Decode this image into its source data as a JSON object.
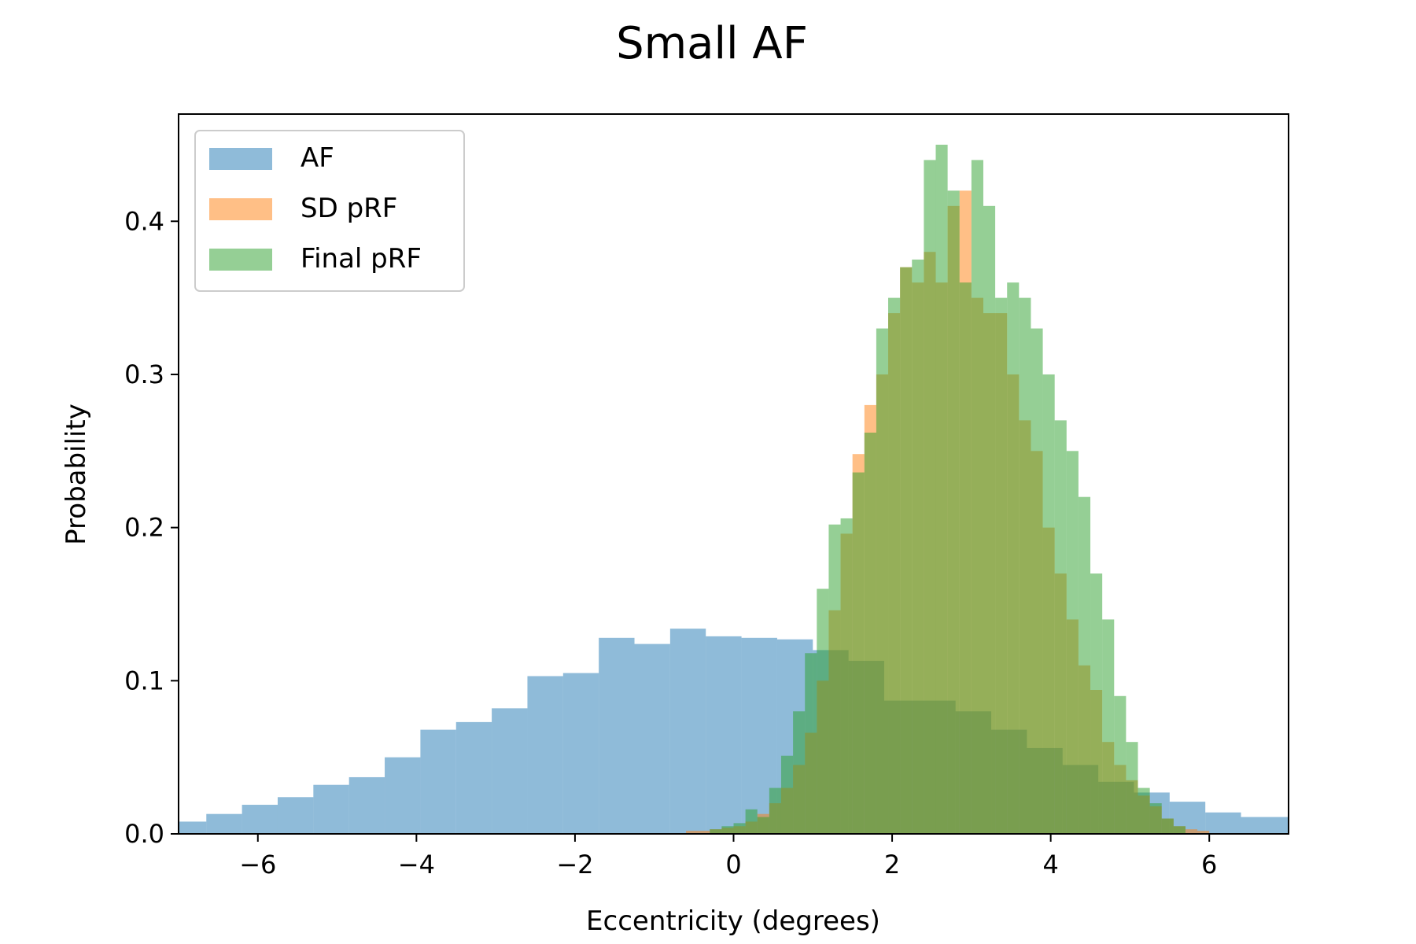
{
  "chart_data": {
    "type": "histogram",
    "title": "Small AF",
    "xlabel": "Eccentricity (degrees)",
    "ylabel": "Probability",
    "xlim": [
      -7,
      7
    ],
    "ylim": [
      0,
      0.47
    ],
    "x_ticks": [
      -6,
      -4,
      -2,
      0,
      2,
      4,
      6
    ],
    "x_tick_labels": [
      "−6",
      "−4",
      "−2",
      "0",
      "2",
      "4",
      "6"
    ],
    "y_ticks": [
      0.0,
      0.1,
      0.2,
      0.3,
      0.4
    ],
    "y_tick_labels": [
      "0.0",
      "0.1",
      "0.2",
      "0.3",
      "0.4"
    ],
    "grid": false,
    "legend": {
      "location": "upper-left",
      "entries": [
        "AF",
        "SD pRF",
        "Final pRF"
      ]
    },
    "series": [
      {
        "name": "AF",
        "color": "#1f77b4",
        "alpha": 0.5,
        "bin_edges": [
          -7.0,
          -6.65,
          -6.2,
          -5.75,
          -5.3,
          -4.85,
          -4.4,
          -3.95,
          -3.5,
          -3.05,
          -2.6,
          -2.15,
          -1.7,
          -1.25,
          -0.8,
          -0.35,
          0.1,
          0.55,
          1.0,
          1.45,
          1.9,
          2.35,
          2.8,
          3.25,
          3.7,
          4.15,
          4.6,
          5.05,
          5.5,
          5.95,
          6.4,
          7.0
        ],
        "values": [
          0.008,
          0.013,
          0.019,
          0.024,
          0.032,
          0.037,
          0.05,
          0.068,
          0.073,
          0.082,
          0.103,
          0.105,
          0.128,
          0.124,
          0.134,
          0.129,
          0.128,
          0.127,
          0.12,
          0.113,
          0.087,
          0.087,
          0.08,
          0.068,
          0.056,
          0.045,
          0.034,
          0.027,
          0.021,
          0.014,
          0.011
        ]
      },
      {
        "name": "SD pRF",
        "color": "#ff7f0e",
        "alpha": 0.5,
        "bin_edges": [
          -0.6,
          -0.45,
          -0.3,
          -0.15,
          0.0,
          0.15,
          0.3,
          0.45,
          0.6,
          0.75,
          0.9,
          1.05,
          1.2,
          1.35,
          1.5,
          1.65,
          1.8,
          1.95,
          2.1,
          2.25,
          2.4,
          2.55,
          2.7,
          2.85,
          3.0,
          3.15,
          3.3,
          3.45,
          3.6,
          3.75,
          3.9,
          4.05,
          4.2,
          4.35,
          4.5,
          4.65,
          4.8,
          4.95,
          5.1,
          5.25,
          5.4,
          5.55,
          5.7,
          5.85,
          6.0
        ],
        "values": [
          0.002,
          0.002,
          0.003,
          0.004,
          0.005,
          0.008,
          0.013,
          0.02,
          0.03,
          0.045,
          0.066,
          0.1,
          0.146,
          0.196,
          0.248,
          0.28,
          0.3,
          0.34,
          0.37,
          0.36,
          0.38,
          0.36,
          0.41,
          0.42,
          0.35,
          0.34,
          0.34,
          0.3,
          0.27,
          0.25,
          0.2,
          0.17,
          0.14,
          0.11,
          0.094,
          0.06,
          0.045,
          0.035,
          0.025,
          0.018,
          0.01,
          0.005,
          0.003,
          0.002
        ]
      },
      {
        "name": "Final pRF",
        "color": "#2ca02c",
        "alpha": 0.5,
        "bin_edges": [
          -0.3,
          -0.15,
          0.0,
          0.15,
          0.3,
          0.45,
          0.6,
          0.75,
          0.9,
          1.05,
          1.2,
          1.35,
          1.5,
          1.65,
          1.8,
          1.95,
          2.1,
          2.25,
          2.4,
          2.55,
          2.7,
          2.85,
          3.0,
          3.15,
          3.3,
          3.45,
          3.6,
          3.75,
          3.9,
          4.05,
          4.2,
          4.35,
          4.5,
          4.65,
          4.8,
          4.95,
          5.1,
          5.25,
          5.4,
          5.55,
          5.7
        ],
        "values": [
          0.003,
          0.005,
          0.007,
          0.016,
          0.011,
          0.03,
          0.051,
          0.08,
          0.118,
          0.16,
          0.202,
          0.206,
          0.236,
          0.262,
          0.33,
          0.35,
          0.37,
          0.375,
          0.44,
          0.45,
          0.42,
          0.36,
          0.44,
          0.41,
          0.35,
          0.36,
          0.35,
          0.33,
          0.3,
          0.27,
          0.25,
          0.22,
          0.17,
          0.14,
          0.09,
          0.06,
          0.03,
          0.02,
          0.01,
          0.005
        ]
      }
    ]
  }
}
